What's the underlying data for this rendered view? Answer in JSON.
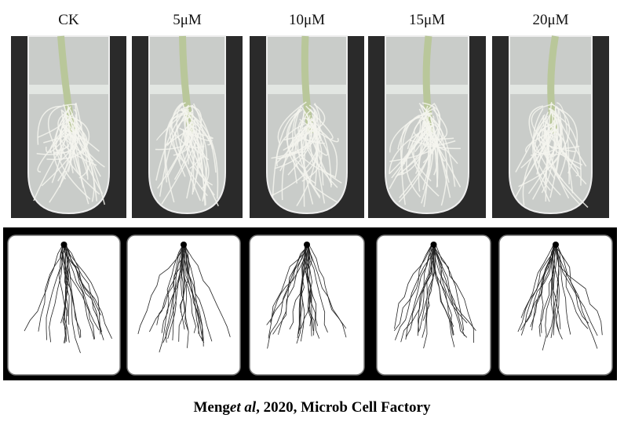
{
  "labels": [
    "CK",
    "5μM",
    "10μM",
    "15μM",
    "20μM"
  ],
  "caption": {
    "author": "Meng",
    "etal": "et al",
    "rest": ", 2020, Microb Cell Factory"
  }
}
